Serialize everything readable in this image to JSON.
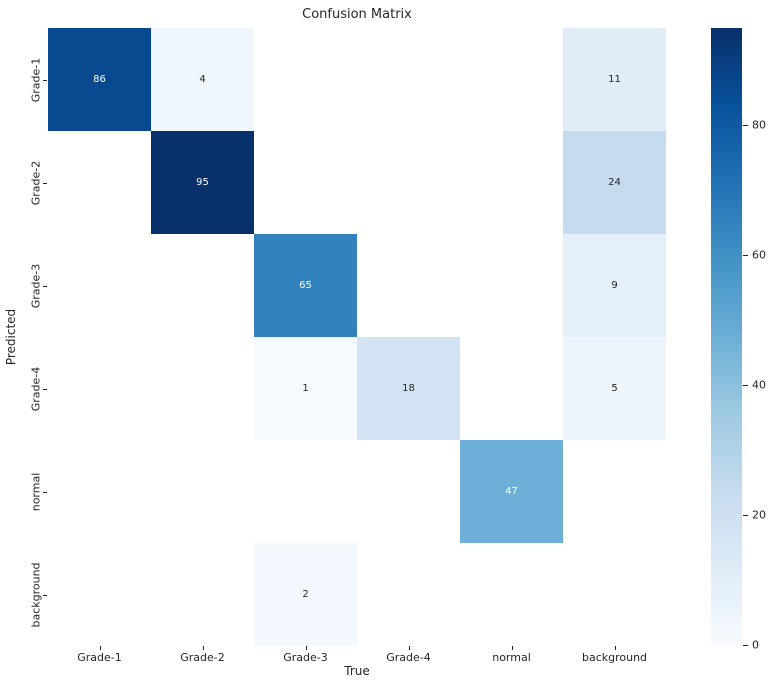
{
  "figure": {
    "title": "Confusion Matrix",
    "xlabel": "True",
    "ylabel": "Predicted"
  },
  "chart_data": {
    "type": "heatmap",
    "title": "Confusion Matrix",
    "xlabel": "True",
    "ylabel": "Predicted",
    "x_categories": [
      "Grade-1",
      "Grade-2",
      "Grade-3",
      "Grade-4",
      "normal",
      "background"
    ],
    "y_categories": [
      "Grade-1",
      "Grade-2",
      "Grade-3",
      "Grade-4",
      "normal",
      "background"
    ],
    "matrix": [
      [
        86,
        4,
        null,
        null,
        null,
        11
      ],
      [
        null,
        95,
        null,
        null,
        null,
        24
      ],
      [
        null,
        null,
        65,
        null,
        null,
        9
      ],
      [
        null,
        null,
        1,
        18,
        null,
        5
      ],
      [
        null,
        null,
        null,
        null,
        47,
        null
      ],
      [
        null,
        null,
        2,
        null,
        null,
        null
      ]
    ],
    "colormap": "Blues",
    "vmin": 0,
    "vmax": 95,
    "colorbar_ticks": [
      0,
      20,
      40,
      60,
      80
    ],
    "colormap_stops": [
      "#f7fbff",
      "#deebf7",
      "#c6dbef",
      "#9ecae1",
      "#6baed6",
      "#4292c6",
      "#2171b5",
      "#08519c",
      "#08306b"
    ],
    "annotation_dark_color": "#262626",
    "annotation_light_color": "#ffffff",
    "empty_color": "#ffffff",
    "legend_position": "right-colorbar",
    "grid": false
  }
}
